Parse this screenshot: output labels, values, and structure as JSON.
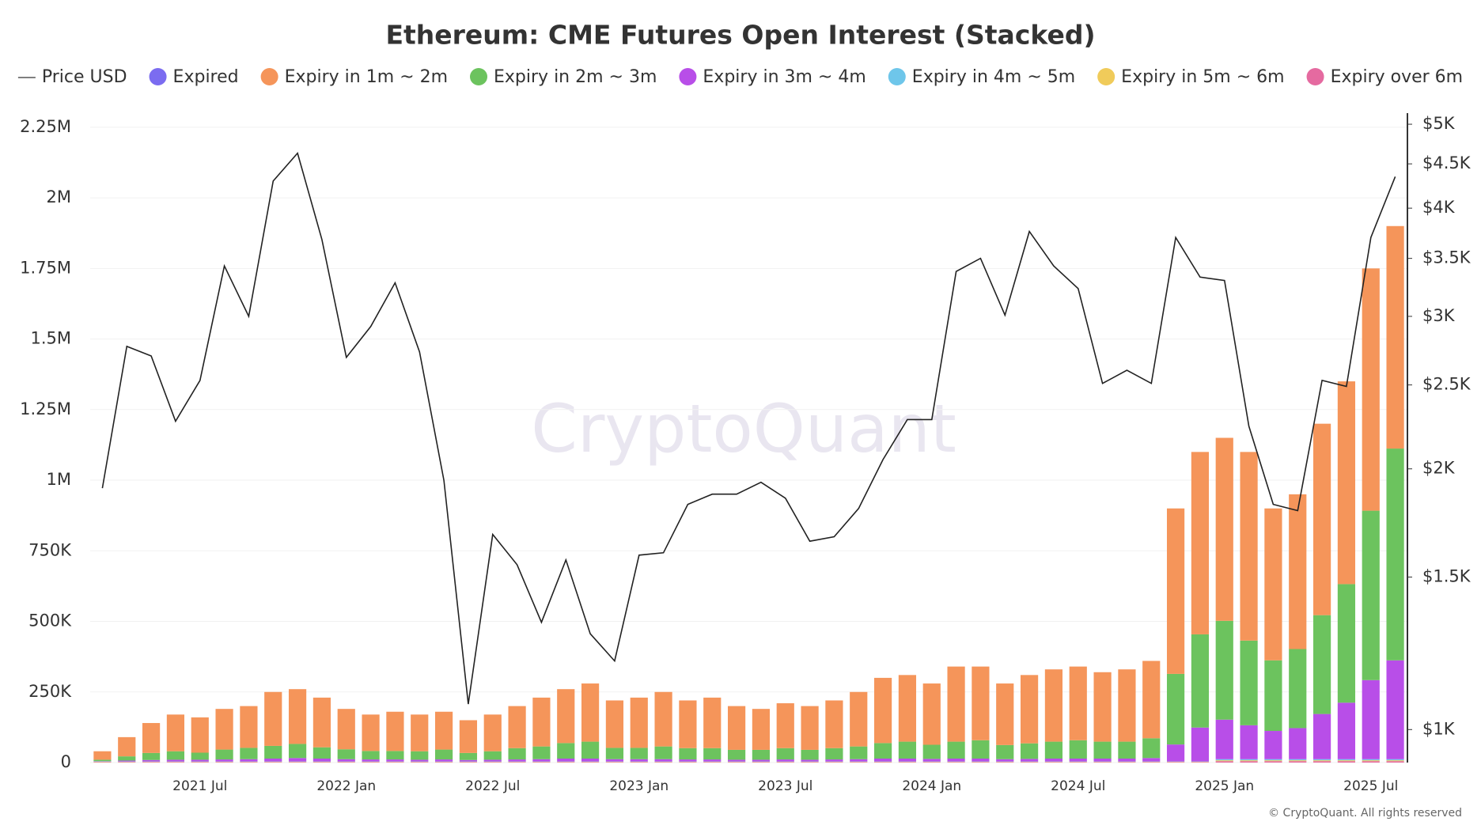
{
  "chart_data": {
    "type": "bar",
    "stacked": true,
    "title": "Ethereum: CME Futures Open Interest (Stacked)",
    "watermark": "CryptoQuant",
    "copyright": "© CryptoQuant. All rights reserved",
    "x": [
      "2021 Mar",
      "2021 Apr",
      "2021 May",
      "2021 Jun",
      "2021 Jul",
      "2021 Aug",
      "2021 Sep",
      "2021 Oct",
      "2021 Nov",
      "2021 Dec",
      "2022 Jan",
      "2022 Feb",
      "2022 Mar",
      "2022 Apr",
      "2022 May",
      "2022 Jun",
      "2022 Jul",
      "2022 Aug",
      "2022 Sep",
      "2022 Oct",
      "2022 Nov",
      "2022 Dec",
      "2023 Jan",
      "2023 Feb",
      "2023 Mar",
      "2023 Apr",
      "2023 May",
      "2023 Jun",
      "2023 Jul",
      "2023 Aug",
      "2023 Sep",
      "2023 Oct",
      "2023 Nov",
      "2023 Dec",
      "2024 Jan",
      "2024 Feb",
      "2024 Mar",
      "2024 Apr",
      "2024 May",
      "2024 Jun",
      "2024 Jul",
      "2024 Aug",
      "2024 Sep",
      "2024 Oct",
      "2024 Nov",
      "2024 Dec",
      "2025 Jan",
      "2025 Feb",
      "2025 Mar",
      "2025 Apr",
      "2025 May",
      "2025 Jun",
      "2025 Jul",
      "2025 Aug"
    ],
    "xticks": [
      "2021 Jul",
      "2022 Jan",
      "2022 Jul",
      "2023 Jan",
      "2023 Jul",
      "2024 Jan",
      "2024 Jul",
      "2025 Jan",
      "2025 Jul"
    ],
    "ylim": [
      0,
      2300000
    ],
    "yticks": [
      0,
      {
        "value": 250000,
        "label": "250K"
      },
      {
        "value": 500000,
        "label": "500K"
      },
      {
        "value": 750000,
        "label": "750K"
      },
      {
        "value": 1000000,
        "label": "1M"
      },
      {
        "value": 1250000,
        "label": "1.25M"
      },
      {
        "value": 1500000,
        "label": "1.5M"
      },
      {
        "value": 1750000,
        "label": "1.75M"
      },
      {
        "value": 2000000,
        "label": "2M"
      },
      {
        "value": 2250000,
        "label": "2.25M"
      }
    ],
    "y2lim": [
      916,
      5150
    ],
    "y2log": true,
    "y2ticks": [
      {
        "value": 1000,
        "label": "$1K"
      },
      {
        "value": 1500,
        "label": "$1.5K"
      },
      {
        "value": 2000,
        "label": "$2K"
      },
      {
        "value": 2500,
        "label": "$2.5K"
      },
      {
        "value": 3000,
        "label": "$3K"
      },
      {
        "value": 3500,
        "label": "$3.5K"
      },
      {
        "value": 4000,
        "label": "$4K"
      },
      {
        "value": 4500,
        "label": "$4.5K"
      },
      {
        "value": 5000,
        "label": "$5K"
      }
    ],
    "grid": true,
    "series": [
      {
        "name": "Price USD",
        "color": "#222222",
        "axis": "y2",
        "values": [
          1900,
          2770,
          2700,
          2270,
          2530,
          3430,
          3000,
          4300,
          4630,
          3680,
          2690,
          2920,
          3280,
          2730,
          1940,
          1070,
          1680,
          1550,
          1330,
          1570,
          1290,
          1200,
          1590,
          1600,
          1820,
          1870,
          1870,
          1930,
          1850,
          1650,
          1670,
          1800,
          2050,
          2280,
          2280,
          3380,
          3500,
          3010,
          3760,
          3430,
          3230,
          2510,
          2600,
          2510,
          3700,
          3330,
          3300,
          2240,
          1820,
          1790,
          2530,
          2490,
          3700,
          4350
        ]
      },
      {
        "name": "Expired",
        "color": "#7b6cf0",
        "values": [
          0,
          0,
          0,
          0,
          0,
          0,
          0,
          0,
          0,
          0,
          0,
          0,
          0,
          0,
          0,
          0,
          0,
          0,
          0,
          0,
          0,
          0,
          0,
          0,
          0,
          0,
          0,
          0,
          0,
          0,
          0,
          0,
          0,
          0,
          0,
          0,
          0,
          0,
          0,
          0,
          0,
          0,
          0,
          0,
          0,
          0,
          0,
          0,
          0,
          0,
          0,
          0,
          0,
          0
        ]
      },
      {
        "name": "Expiry in 1m ~ 2m",
        "color": "#f5955a",
        "values": [
          30000,
          68000,
          106000,
          130000,
          125000,
          144000,
          148000,
          191000,
          194000,
          176000,
          143000,
          129000,
          139000,
          130000,
          134000,
          116000,
          130000,
          149000,
          173000,
          191000,
          206000,
          168000,
          178000,
          193000,
          169000,
          179000,
          155000,
          145000,
          159000,
          155000,
          169000,
          193000,
          231000,
          236000,
          217000,
          266000,
          261000,
          218000,
          242000,
          256000,
          261000,
          246000,
          256000,
          274000,
          586000,
          646000,
          648000,
          668000,
          538000,
          548000,
          678000,
          718000,
          858000,
          788000
        ]
      },
      {
        "name": "Expiry in 2m ~ 3m",
        "color": "#6cc35e",
        "values": [
          5000,
          15000,
          25000,
          30000,
          25000,
          35000,
          40000,
          45000,
          50000,
          40000,
          35000,
          30000,
          30000,
          30000,
          35000,
          25000,
          30000,
          40000,
          45000,
          55000,
          60000,
          40000,
          40000,
          45000,
          40000,
          40000,
          35000,
          35000,
          40000,
          35000,
          40000,
          45000,
          55000,
          60000,
          50000,
          60000,
          65000,
          50000,
          55000,
          60000,
          65000,
          60000,
          60000,
          70000,
          250000,
          330000,
          350000,
          300000,
          250000,
          280000,
          350000,
          420000,
          600000,
          750000
        ]
      },
      {
        "name": "Expiry in 3m ~ 4m",
        "color": "#b84ee8",
        "values": [
          1000,
          3000,
          5000,
          6000,
          6000,
          7000,
          8000,
          10000,
          12000,
          10000,
          8000,
          7000,
          7000,
          6000,
          7000,
          5000,
          6000,
          7000,
          8000,
          10000,
          10000,
          8000,
          8000,
          8000,
          7000,
          7000,
          6000,
          6000,
          7000,
          6000,
          7000,
          8000,
          10000,
          10000,
          9000,
          10000,
          10000,
          8000,
          9000,
          10000,
          10000,
          10000,
          10000,
          12000,
          60000,
          120000,
          140000,
          120000,
          100000,
          110000,
          160000,
          200000,
          280000,
          350000
        ]
      },
      {
        "name": "Expiry in 4m ~ 5m",
        "color": "#6ec6ea",
        "values": [
          1000,
          1000,
          1000,
          1000,
          1000,
          1000,
          1000,
          1000,
          1000,
          1000,
          1000,
          1000,
          1000,
          1000,
          1000,
          1000,
          1000,
          1000,
          1000,
          1000,
          1000,
          1000,
          1000,
          1000,
          1000,
          1000,
          1000,
          1000,
          1000,
          1000,
          1000,
          1000,
          1000,
          1000,
          1000,
          1000,
          1000,
          1000,
          1000,
          1000,
          1000,
          1000,
          1000,
          1000,
          1000,
          1000,
          4000,
          4000,
          4000,
          4000,
          4000,
          4000,
          4000,
          4000
        ]
      },
      {
        "name": "Expiry in 5m ~ 6m",
        "color": "#f0cb5a",
        "values": [
          1000,
          1000,
          1000,
          1000,
          1000,
          1000,
          1000,
          1000,
          1000,
          1000,
          1000,
          1000,
          1000,
          1000,
          1000,
          1000,
          1000,
          1000,
          1000,
          1000,
          1000,
          1000,
          1000,
          1000,
          1000,
          1000,
          1000,
          1000,
          1000,
          1000,
          1000,
          1000,
          1000,
          1000,
          1000,
          1000,
          1000,
          1000,
          1000,
          1000,
          1000,
          1000,
          1000,
          1000,
          1000,
          1000,
          3000,
          3000,
          3000,
          3000,
          3000,
          3000,
          3000,
          3000
        ]
      },
      {
        "name": "Expiry over 6m",
        "color": "#e56aa0",
        "values": [
          2000,
          2000,
          2000,
          2000,
          2000,
          2000,
          2000,
          2000,
          2000,
          2000,
          2000,
          2000,
          2000,
          2000,
          2000,
          2000,
          2000,
          2000,
          2000,
          2000,
          2000,
          2000,
          2000,
          2000,
          2000,
          2000,
          2000,
          2000,
          2000,
          2000,
          2000,
          2000,
          2000,
          2000,
          2000,
          2000,
          2000,
          2000,
          2000,
          2000,
          2000,
          2000,
          2000,
          2000,
          2000,
          2000,
          5000,
          5000,
          5000,
          5000,
          5000,
          5000,
          5000,
          5000
        ]
      }
    ]
  }
}
